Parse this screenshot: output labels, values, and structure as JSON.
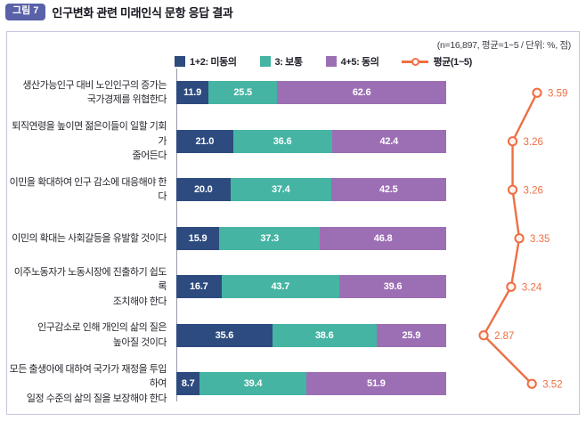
{
  "header": {
    "badge": "그림 7",
    "title": "인구변화 관련 미래인식 문항 응답 결과"
  },
  "note": "(n=16,897, 평균=1~5 / 단위: %, 점)",
  "legend": [
    {
      "type": "swatch",
      "label": "1+2: 미동의",
      "color": "#2d4b7e"
    },
    {
      "type": "swatch",
      "label": "3: 보통",
      "color": "#45b4a3"
    },
    {
      "type": "swatch",
      "label": "4+5: 동의",
      "color": "#9c6fb5"
    },
    {
      "type": "line",
      "label": "평균(1~5)",
      "color": "#ee6f44"
    }
  ],
  "chart_data": {
    "type": "bar",
    "orientation": "horizontal-stacked",
    "unit": "%",
    "categories": [
      "생산가능인구 대비 노인인구의 증가는\n국가경제를 위협한다",
      "퇴직연령을 높이면 젊은이들이 일할 기회가\n줄어든다",
      "이민을 확대하여 인구 감소에 대응해야 한다",
      "이민의 확대는 사회갈등을 유발할 것이다",
      "이주노동자가 노동시장에 진출하기 쉽도록\n조치해야 한다",
      "인구감소로 인해 개인의 삶의 질은\n높아질 것이다",
      "모든 출생아에 대하여 국가가 재정을 투입하여\n일정 수준의 삶의 질을 보장해야 한다"
    ],
    "series": [
      {
        "name": "1+2: 미동의",
        "color": "#2d4b7e",
        "values": [
          11.9,
          21.0,
          20.0,
          15.9,
          16.7,
          35.6,
          8.7
        ]
      },
      {
        "name": "3: 보통",
        "color": "#45b4a3",
        "values": [
          25.5,
          36.6,
          37.4,
          37.3,
          43.7,
          38.6,
          39.4
        ]
      },
      {
        "name": "4+5: 동의",
        "color": "#9c6fb5",
        "values": [
          62.6,
          42.4,
          42.5,
          46.8,
          39.6,
          25.9,
          51.9
        ]
      }
    ],
    "line_series": {
      "name": "평균(1~5)",
      "color": "#ee6f44",
      "values": [
        3.59,
        3.26,
        3.26,
        3.35,
        3.24,
        2.87,
        3.52
      ],
      "range": [
        1,
        5
      ]
    },
    "xlim": [
      0,
      100
    ],
    "grid": false,
    "legend_position": "top"
  },
  "colors": {
    "disagree": "#2d4b7e",
    "neutral": "#45b4a3",
    "agree": "#9c6fb5",
    "average_line": "#ee6f44",
    "badge": "#5a61a8",
    "frame_border": "#c3c6de"
  }
}
